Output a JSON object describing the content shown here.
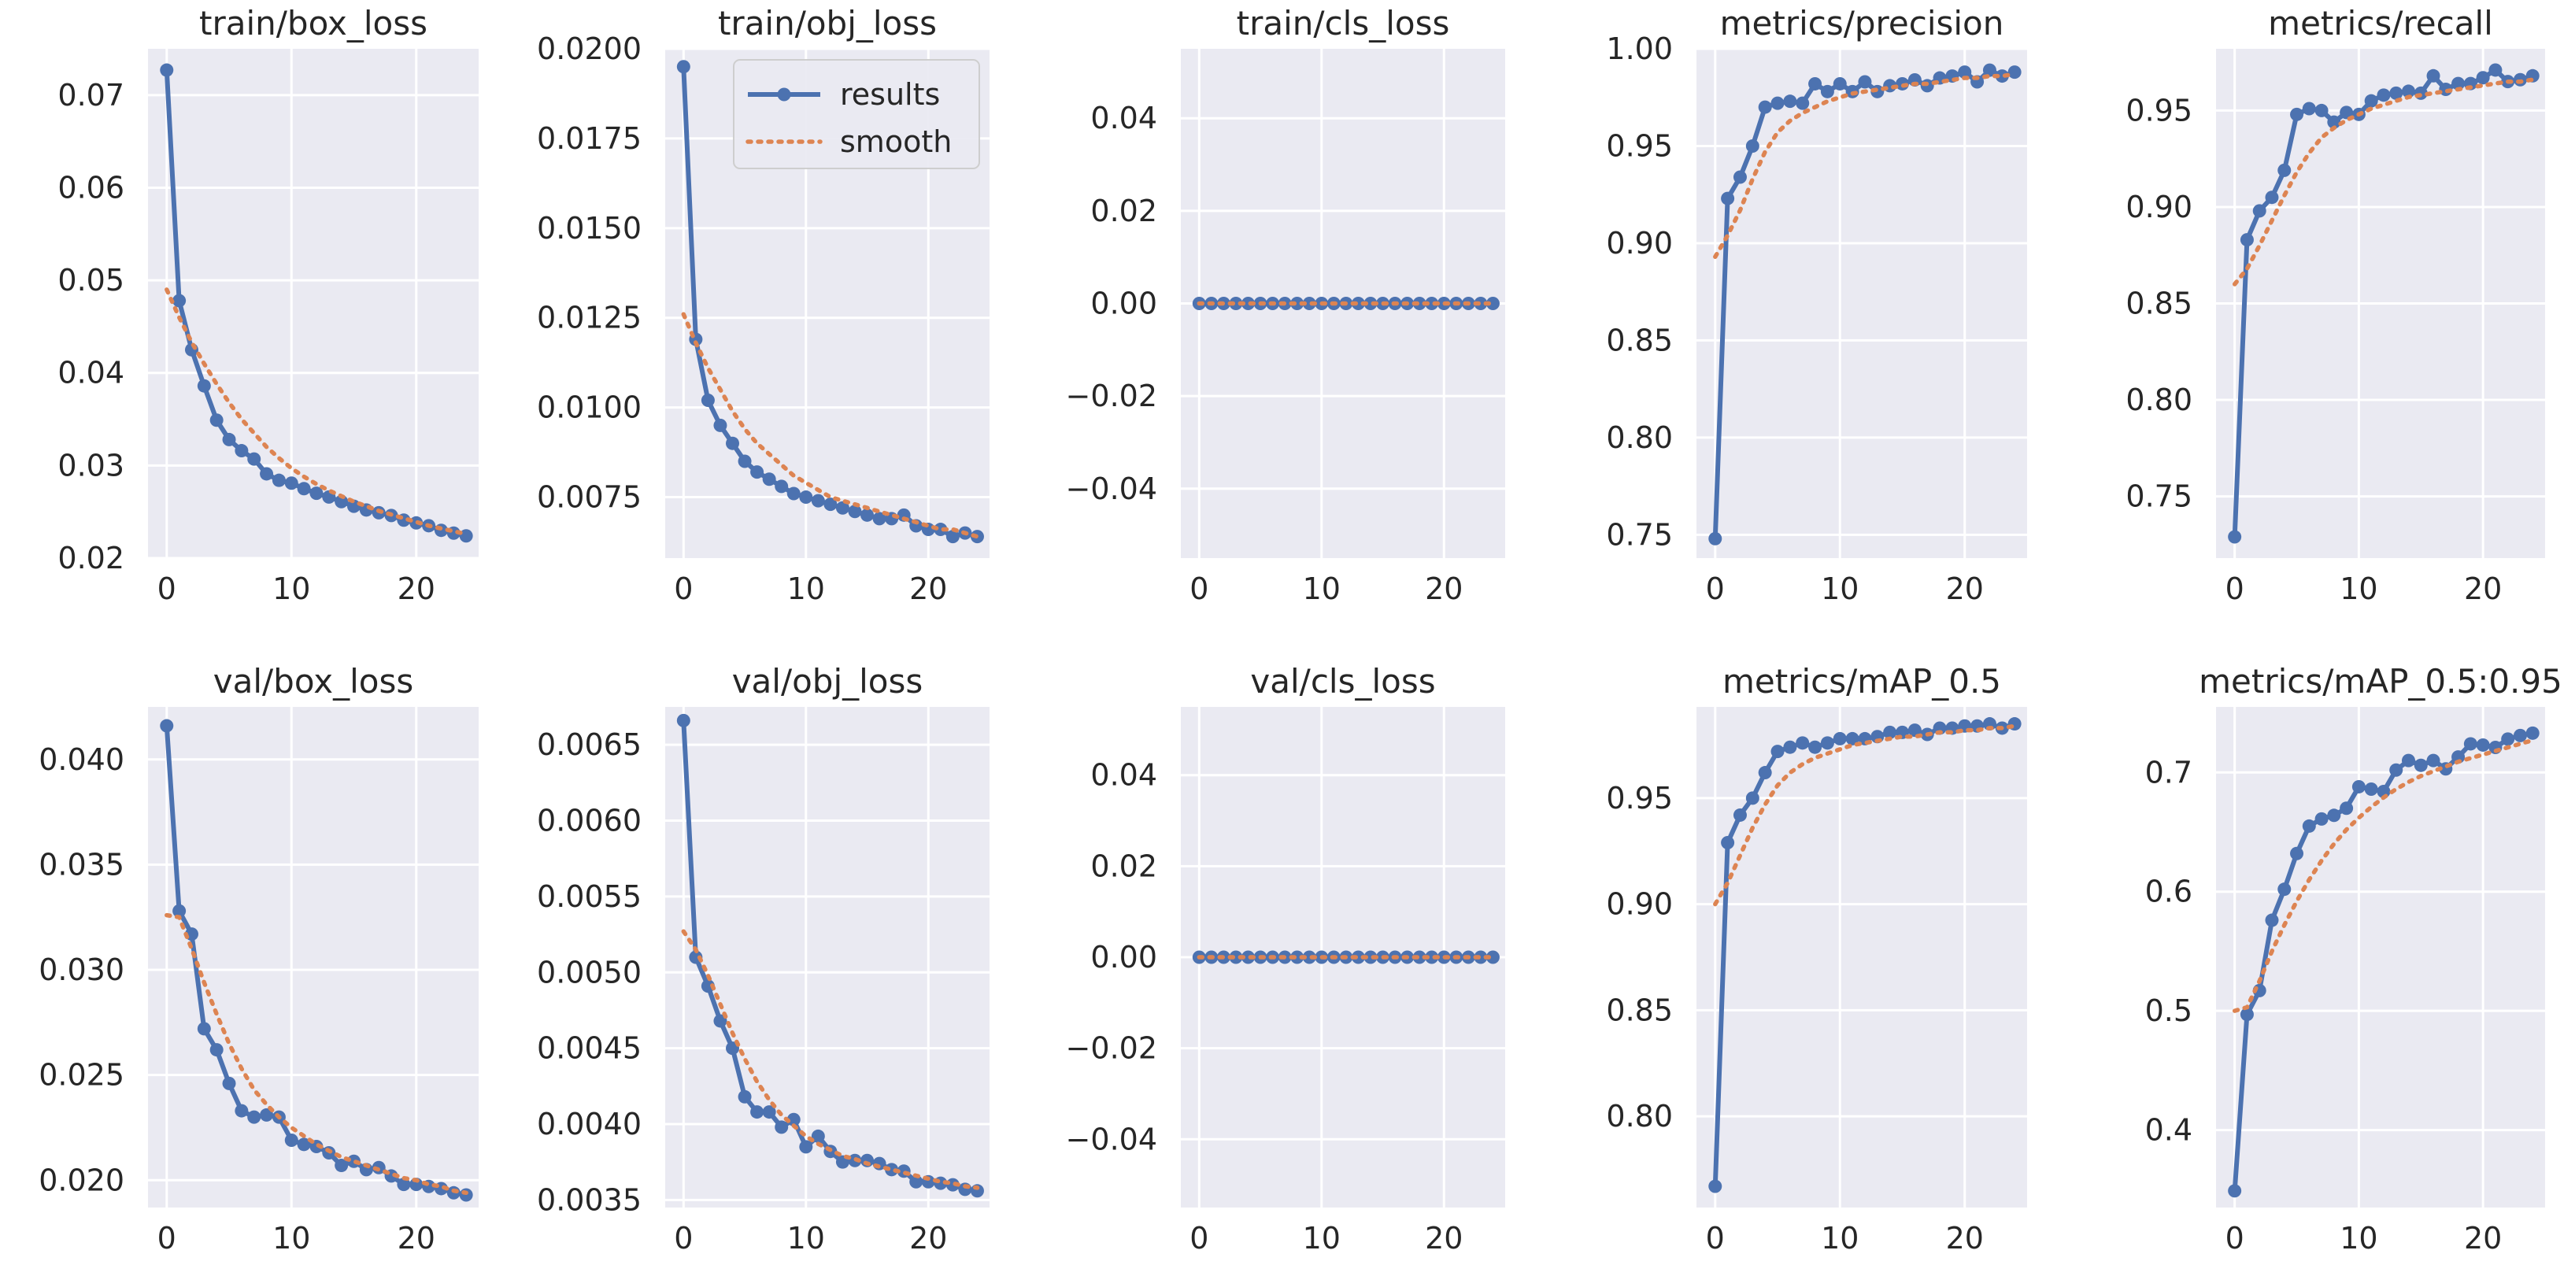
{
  "colors": {
    "results": "#4c72b0",
    "smooth": "#dd8452",
    "plot_bg": "#eaeaf2",
    "grid": "#ffffff",
    "text": "#262626"
  },
  "legend": {
    "results_label": "results",
    "smooth_label": "smooth"
  },
  "chart_data": [
    {
      "type": "line",
      "title": "train/box_loss",
      "xlim": [
        -1.5,
        25
      ],
      "ylim": [
        0.02,
        0.075
      ],
      "xticks": [
        0,
        10,
        20
      ],
      "xtick_labels": [
        "0",
        "10",
        "20"
      ],
      "yticks": [
        0.02,
        0.03,
        0.04,
        0.05,
        0.06,
        0.07
      ],
      "ytick_labels": [
        "0.02",
        "0.03",
        "0.04",
        "0.05",
        "0.06",
        "0.07"
      ],
      "x": [
        0,
        1,
        2,
        3,
        4,
        5,
        6,
        7,
        8,
        9,
        10,
        11,
        12,
        13,
        14,
        15,
        16,
        17,
        18,
        19,
        20,
        21,
        22,
        23,
        24
      ],
      "series": [
        {
          "name": "results",
          "values": [
            0.0727,
            0.0478,
            0.0425,
            0.0386,
            0.0349,
            0.0328,
            0.0316,
            0.0307,
            0.0291,
            0.0284,
            0.0281,
            0.0275,
            0.027,
            0.0266,
            0.0261,
            0.0256,
            0.0252,
            0.0249,
            0.0246,
            0.0241,
            0.0238,
            0.0235,
            0.023,
            0.0227,
            0.0224
          ]
        },
        {
          "name": "smooth",
          "values": [
            0.049,
            0.046,
            0.0433,
            0.041,
            0.0388,
            0.0368,
            0.035,
            0.0335,
            0.032,
            0.0308,
            0.0297,
            0.0288,
            0.028,
            0.0273,
            0.0267,
            0.0261,
            0.0256,
            0.0251,
            0.0247,
            0.0243,
            0.0239,
            0.0235,
            0.0232,
            0.0229,
            0.0226
          ]
        }
      ]
    },
    {
      "type": "line",
      "title": "train/obj_loss",
      "xlim": [
        -1.5,
        25
      ],
      "ylim": [
        0.0058,
        0.02
      ],
      "legend": "upper right",
      "xticks": [
        0,
        10,
        20
      ],
      "xtick_labels": [
        "0",
        "10",
        "20"
      ],
      "yticks": [
        0.0075,
        0.01,
        0.0125,
        0.015,
        0.0175,
        0.02
      ],
      "ytick_labels": [
        "0.0075",
        "0.0100",
        "0.0125",
        "0.0150",
        "0.0175",
        "0.0200"
      ],
      "x": [
        0,
        1,
        2,
        3,
        4,
        5,
        6,
        7,
        8,
        9,
        10,
        11,
        12,
        13,
        14,
        15,
        16,
        17,
        18,
        19,
        20,
        21,
        22,
        23,
        24
      ],
      "series": [
        {
          "name": "results",
          "values": [
            0.0195,
            0.0119,
            0.0102,
            0.0095,
            0.009,
            0.0085,
            0.0082,
            0.008,
            0.0078,
            0.0076,
            0.0075,
            0.0074,
            0.0073,
            0.0072,
            0.0071,
            0.007,
            0.0069,
            0.0069,
            0.007,
            0.0067,
            0.0066,
            0.0066,
            0.0064,
            0.0065,
            0.0064
          ]
        },
        {
          "name": "smooth",
          "values": [
            0.0126,
            0.0118,
            0.0111,
            0.0105,
            0.0099,
            0.0094,
            0.009,
            0.0087,
            0.0084,
            0.0081,
            0.0079,
            0.0077,
            0.0075,
            0.0074,
            0.0073,
            0.0072,
            0.0071,
            0.007,
            0.0069,
            0.0068,
            0.0067,
            0.0066,
            0.0066,
            0.0065,
            0.0064
          ]
        }
      ]
    },
    {
      "type": "line",
      "title": "train/cls_loss",
      "xlim": [
        -1.5,
        25
      ],
      "ylim": [
        -0.055,
        0.055
      ],
      "xticks": [
        0,
        10,
        20
      ],
      "xtick_labels": [
        "0",
        "10",
        "20"
      ],
      "yticks": [
        -0.04,
        -0.02,
        0.0,
        0.02,
        0.04
      ],
      "ytick_labels": [
        "−0.04",
        "−0.02",
        "0.00",
        "0.02",
        "0.04"
      ],
      "x": [
        0,
        1,
        2,
        3,
        4,
        5,
        6,
        7,
        8,
        9,
        10,
        11,
        12,
        13,
        14,
        15,
        16,
        17,
        18,
        19,
        20,
        21,
        22,
        23,
        24
      ],
      "series": [
        {
          "name": "results",
          "values": [
            0,
            0,
            0,
            0,
            0,
            0,
            0,
            0,
            0,
            0,
            0,
            0,
            0,
            0,
            0,
            0,
            0,
            0,
            0,
            0,
            0,
            0,
            0,
            0,
            0
          ]
        },
        {
          "name": "smooth",
          "values": [
            0,
            0,
            0,
            0,
            0,
            0,
            0,
            0,
            0,
            0,
            0,
            0,
            0,
            0,
            0,
            0,
            0,
            0,
            0,
            0,
            0,
            0,
            0,
            0,
            0
          ]
        }
      ]
    },
    {
      "type": "line",
      "title": "metrics/precision",
      "xlim": [
        -1.5,
        25
      ],
      "ylim": [
        0.738,
        1.0
      ],
      "xticks": [
        0,
        10,
        20
      ],
      "xtick_labels": [
        "0",
        "10",
        "20"
      ],
      "yticks": [
        0.75,
        0.8,
        0.85,
        0.9,
        0.95,
        1.0
      ],
      "ytick_labels": [
        "0.75",
        "0.80",
        "0.85",
        "0.90",
        "0.95",
        "1.00"
      ],
      "x": [
        0,
        1,
        2,
        3,
        4,
        5,
        6,
        7,
        8,
        9,
        10,
        11,
        12,
        13,
        14,
        15,
        16,
        17,
        18,
        19,
        20,
        21,
        22,
        23,
        24
      ],
      "series": [
        {
          "name": "results",
          "values": [
            0.748,
            0.923,
            0.934,
            0.95,
            0.97,
            0.972,
            0.973,
            0.972,
            0.982,
            0.978,
            0.982,
            0.978,
            0.983,
            0.978,
            0.981,
            0.982,
            0.984,
            0.981,
            0.985,
            0.986,
            0.988,
            0.983,
            0.989,
            0.986,
            0.988
          ]
        },
        {
          "name": "smooth",
          "values": [
            0.893,
            0.904,
            0.917,
            0.933,
            0.947,
            0.957,
            0.963,
            0.967,
            0.97,
            0.973,
            0.975,
            0.977,
            0.978,
            0.979,
            0.98,
            0.981,
            0.982,
            0.982,
            0.983,
            0.984,
            0.985,
            0.985,
            0.986,
            0.986,
            0.987
          ]
        }
      ]
    },
    {
      "type": "line",
      "title": "metrics/recall",
      "xlim": [
        -1.5,
        25
      ],
      "ylim": [
        0.718,
        0.982
      ],
      "xticks": [
        0,
        10,
        20
      ],
      "xtick_labels": [
        "0",
        "10",
        "20"
      ],
      "yticks": [
        0.75,
        0.8,
        0.85,
        0.9,
        0.95
      ],
      "ytick_labels": [
        "0.75",
        "0.80",
        "0.85",
        "0.90",
        "0.95"
      ],
      "x": [
        0,
        1,
        2,
        3,
        4,
        5,
        6,
        7,
        8,
        9,
        10,
        11,
        12,
        13,
        14,
        15,
        16,
        17,
        18,
        19,
        20,
        21,
        22,
        23,
        24
      ],
      "series": [
        {
          "name": "results",
          "values": [
            0.729,
            0.883,
            0.898,
            0.905,
            0.919,
            0.948,
            0.951,
            0.95,
            0.944,
            0.949,
            0.948,
            0.955,
            0.958,
            0.959,
            0.96,
            0.959,
            0.968,
            0.961,
            0.964,
            0.964,
            0.967,
            0.971,
            0.965,
            0.966,
            0.968
          ]
        },
        {
          "name": "smooth",
          "values": [
            0.86,
            0.868,
            0.88,
            0.893,
            0.906,
            0.918,
            0.928,
            0.936,
            0.941,
            0.945,
            0.948,
            0.951,
            0.953,
            0.955,
            0.957,
            0.958,
            0.959,
            0.96,
            0.961,
            0.962,
            0.963,
            0.964,
            0.965,
            0.965,
            0.966
          ]
        }
      ]
    },
    {
      "type": "line",
      "title": "val/box_loss",
      "xlim": [
        -1.5,
        25
      ],
      "ylim": [
        0.0187,
        0.0425
      ],
      "xticks": [
        0,
        10,
        20
      ],
      "xtick_labels": [
        "0",
        "10",
        "20"
      ],
      "yticks": [
        0.02,
        0.025,
        0.03,
        0.035,
        0.04
      ],
      "ytick_labels": [
        "0.020",
        "0.025",
        "0.030",
        "0.035",
        "0.040"
      ],
      "x": [
        0,
        1,
        2,
        3,
        4,
        5,
        6,
        7,
        8,
        9,
        10,
        11,
        12,
        13,
        14,
        15,
        16,
        17,
        18,
        19,
        20,
        21,
        22,
        23,
        24
      ],
      "series": [
        {
          "name": "results",
          "values": [
            0.0416,
            0.0328,
            0.0317,
            0.0272,
            0.0262,
            0.0246,
            0.0233,
            0.023,
            0.0231,
            0.023,
            0.0219,
            0.0217,
            0.0216,
            0.0213,
            0.0207,
            0.0209,
            0.0205,
            0.0206,
            0.0202,
            0.0198,
            0.0198,
            0.0197,
            0.0196,
            0.0194,
            0.0193
          ]
        },
        {
          "name": "smooth",
          "values": [
            0.0326,
            0.0325,
            0.031,
            0.0294,
            0.0279,
            0.0265,
            0.0253,
            0.0243,
            0.0236,
            0.023,
            0.0225,
            0.0221,
            0.0217,
            0.0214,
            0.0211,
            0.0209,
            0.0207,
            0.0205,
            0.0203,
            0.0201,
            0.02,
            0.0198,
            0.0197,
            0.0195,
            0.0194
          ]
        }
      ]
    },
    {
      "type": "line",
      "title": "val/obj_loss",
      "xlim": [
        -1.5,
        25
      ],
      "ylim": [
        0.00345,
        0.00675
      ],
      "xticks": [
        0,
        10,
        20
      ],
      "xtick_labels": [
        "0",
        "10",
        "20"
      ],
      "yticks": [
        0.0035,
        0.004,
        0.0045,
        0.005,
        0.0055,
        0.006,
        0.0065
      ],
      "ytick_labels": [
        "0.0035",
        "0.0040",
        "0.0045",
        "0.0050",
        "0.0055",
        "0.0060",
        "0.0065"
      ],
      "x": [
        0,
        1,
        2,
        3,
        4,
        5,
        6,
        7,
        8,
        9,
        10,
        11,
        12,
        13,
        14,
        15,
        16,
        17,
        18,
        19,
        20,
        21,
        22,
        23,
        24
      ],
      "series": [
        {
          "name": "results",
          "values": [
            0.00666,
            0.0051,
            0.00491,
            0.00468,
            0.0045,
            0.00418,
            0.00408,
            0.00408,
            0.00398,
            0.00403,
            0.00385,
            0.00392,
            0.00382,
            0.00375,
            0.00376,
            0.00376,
            0.00374,
            0.0037,
            0.00369,
            0.00362,
            0.00362,
            0.00361,
            0.0036,
            0.00357,
            0.00356
          ]
        },
        {
          "name": "smooth",
          "values": [
            0.00527,
            0.00515,
            0.00498,
            0.00479,
            0.0046,
            0.00443,
            0.00428,
            0.00416,
            0.00406,
            0.00399,
            0.00392,
            0.00387,
            0.00383,
            0.00379,
            0.00377,
            0.00374,
            0.00372,
            0.0037,
            0.00368,
            0.00366,
            0.00364,
            0.00362,
            0.00361,
            0.00359,
            0.00358
          ]
        }
      ]
    },
    {
      "type": "line",
      "title": "val/cls_loss",
      "xlim": [
        -1.5,
        25
      ],
      "ylim": [
        -0.055,
        0.055
      ],
      "xticks": [
        0,
        10,
        20
      ],
      "xtick_labels": [
        "0",
        "10",
        "20"
      ],
      "yticks": [
        -0.04,
        -0.02,
        0.0,
        0.02,
        0.04
      ],
      "ytick_labels": [
        "−0.04",
        "−0.02",
        "0.00",
        "0.02",
        "0.04"
      ],
      "x": [
        0,
        1,
        2,
        3,
        4,
        5,
        6,
        7,
        8,
        9,
        10,
        11,
        12,
        13,
        14,
        15,
        16,
        17,
        18,
        19,
        20,
        21,
        22,
        23,
        24
      ],
      "series": [
        {
          "name": "results",
          "values": [
            0,
            0,
            0,
            0,
            0,
            0,
            0,
            0,
            0,
            0,
            0,
            0,
            0,
            0,
            0,
            0,
            0,
            0,
            0,
            0,
            0,
            0,
            0,
            0,
            0
          ]
        },
        {
          "name": "smooth",
          "values": [
            0,
            0,
            0,
            0,
            0,
            0,
            0,
            0,
            0,
            0,
            0,
            0,
            0,
            0,
            0,
            0,
            0,
            0,
            0,
            0,
            0,
            0,
            0,
            0,
            0
          ]
        }
      ]
    },
    {
      "type": "line",
      "title": "metrics/mAP_0.5",
      "xlim": [
        -1.5,
        25
      ],
      "ylim": [
        0.757,
        0.993
      ],
      "xticks": [
        0,
        10,
        20
      ],
      "xtick_labels": [
        "0",
        "10",
        "20"
      ],
      "yticks": [
        0.8,
        0.85,
        0.9,
        0.95
      ],
      "ytick_labels": [
        "0.80",
        "0.85",
        "0.90",
        "0.95"
      ],
      "x": [
        0,
        1,
        2,
        3,
        4,
        5,
        6,
        7,
        8,
        9,
        10,
        11,
        12,
        13,
        14,
        15,
        16,
        17,
        18,
        19,
        20,
        21,
        22,
        23,
        24
      ],
      "series": [
        {
          "name": "results",
          "values": [
            0.767,
            0.929,
            0.942,
            0.95,
            0.962,
            0.972,
            0.974,
            0.976,
            0.974,
            0.976,
            0.978,
            0.978,
            0.978,
            0.979,
            0.981,
            0.981,
            0.982,
            0.98,
            0.983,
            0.983,
            0.984,
            0.984,
            0.985,
            0.983,
            0.985
          ]
        },
        {
          "name": "smooth",
          "values": [
            0.9,
            0.91,
            0.923,
            0.936,
            0.947,
            0.956,
            0.962,
            0.966,
            0.969,
            0.971,
            0.973,
            0.975,
            0.976,
            0.977,
            0.978,
            0.979,
            0.979,
            0.98,
            0.981,
            0.981,
            0.982,
            0.982,
            0.983,
            0.983,
            0.984
          ]
        }
      ]
    },
    {
      "type": "line",
      "title": "metrics/mAP_0.5:0.95",
      "xlim": [
        -1.5,
        25
      ],
      "ylim": [
        0.335,
        0.755
      ],
      "xticks": [
        0,
        10,
        20
      ],
      "xtick_labels": [
        "0",
        "10",
        "20"
      ],
      "yticks": [
        0.4,
        0.5,
        0.6,
        0.7
      ],
      "ytick_labels": [
        "0.4",
        "0.5",
        "0.6",
        "0.7"
      ],
      "x": [
        0,
        1,
        2,
        3,
        4,
        5,
        6,
        7,
        8,
        9,
        10,
        11,
        12,
        13,
        14,
        15,
        16,
        17,
        18,
        19,
        20,
        21,
        22,
        23,
        24
      ],
      "series": [
        {
          "name": "results",
          "values": [
            0.349,
            0.497,
            0.517,
            0.576,
            0.602,
            0.632,
            0.655,
            0.661,
            0.664,
            0.67,
            0.688,
            0.686,
            0.684,
            0.702,
            0.71,
            0.706,
            0.71,
            0.703,
            0.713,
            0.724,
            0.723,
            0.721,
            0.728,
            0.731,
            0.733
          ]
        },
        {
          "name": "smooth",
          "values": [
            0.5,
            0.503,
            0.525,
            0.55,
            0.572,
            0.592,
            0.61,
            0.626,
            0.64,
            0.652,
            0.662,
            0.671,
            0.679,
            0.686,
            0.692,
            0.697,
            0.701,
            0.705,
            0.709,
            0.712,
            0.715,
            0.718,
            0.721,
            0.724,
            0.727
          ]
        }
      ]
    }
  ]
}
